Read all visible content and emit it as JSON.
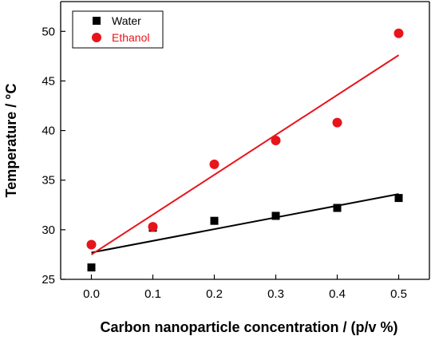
{
  "chart_data": {
    "type": "scatter",
    "xlabel": "Carbon nanoparticle concentration / (p/v %)",
    "ylabel": "Temperature / °C",
    "xlim": [
      -0.05,
      0.55
    ],
    "ylim": [
      25,
      53
    ],
    "xticks": [
      "0.0",
      "0.1",
      "0.2",
      "0.3",
      "0.4",
      "0.5"
    ],
    "yticks": [
      "25",
      "30",
      "35",
      "40",
      "45",
      "50"
    ],
    "grid": false,
    "legend": "top-left",
    "series": [
      {
        "name": "Water",
        "marker": "square",
        "color": "#000000",
        "x": [
          0.0,
          0.1,
          0.2,
          0.3,
          0.4,
          0.5
        ],
        "y": [
          26.2,
          30.2,
          30.9,
          31.4,
          32.2,
          33.2
        ],
        "fit": {
          "x": [
            0.0,
            0.5
          ],
          "y": [
            27.7,
            33.6
          ]
        }
      },
      {
        "name": "Ethanol",
        "marker": "circle",
        "color": "#e8141b",
        "x": [
          0.0,
          0.1,
          0.2,
          0.3,
          0.4,
          0.5
        ],
        "y": [
          28.5,
          30.3,
          36.6,
          39.0,
          40.8,
          49.8
        ],
        "fit": {
          "x": [
            0.0,
            0.5
          ],
          "y": [
            27.5,
            47.6
          ]
        }
      }
    ]
  }
}
